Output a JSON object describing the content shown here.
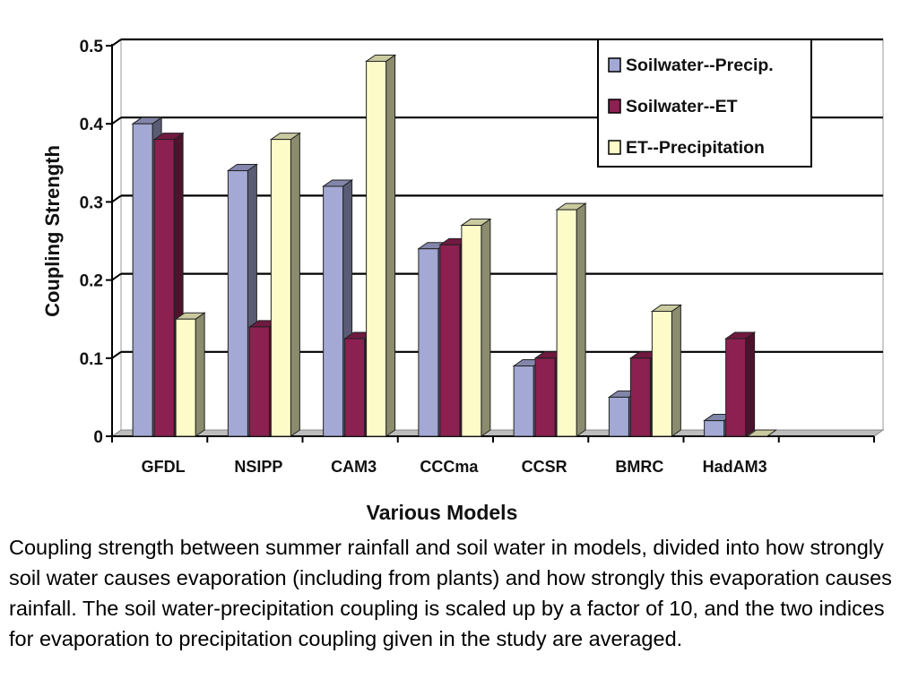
{
  "chart_data": {
    "type": "bar",
    "categories": [
      "GFDL",
      "NSIPP",
      "CAM3",
      "CCCma",
      "CCSR",
      "BMRC",
      "HadAM3"
    ],
    "series": [
      {
        "name": "Soilwater--Precip.",
        "values": [
          0.4,
          0.34,
          0.32,
          0.24,
          0.09,
          0.05,
          0.02
        ],
        "color": "#a3a8d4"
      },
      {
        "name": "Soilwater--ET",
        "values": [
          0.38,
          0.14,
          0.125,
          0.245,
          0.1,
          0.1,
          0.125
        ],
        "color": "#8c2050"
      },
      {
        "name": "ET--Precipitation",
        "values": [
          0.15,
          0.38,
          0.48,
          0.27,
          0.29,
          0.16,
          0.0
        ],
        "color": "#fdfcc8"
      }
    ],
    "xlabel": "Various Models",
    "ylabel": "Coupling Strength",
    "ylim": [
      0,
      0.5
    ],
    "yticks": [
      "0",
      "0.1",
      "0.2",
      "0.3",
      "0.4",
      "0.5"
    ],
    "grid": true,
    "legend_position": "top-right",
    "style": "3d"
  },
  "caption": "Coupling strength between summer rainfall and soil water in models, divided into how strongly soil water causes evaporation (including from plants) and how strongly this evaporation causes rainfall. The soil water-precipitation coupling is scaled up by a factor of 10, and the two indices for evaporation to precipitation coupling given in the study are averaged."
}
